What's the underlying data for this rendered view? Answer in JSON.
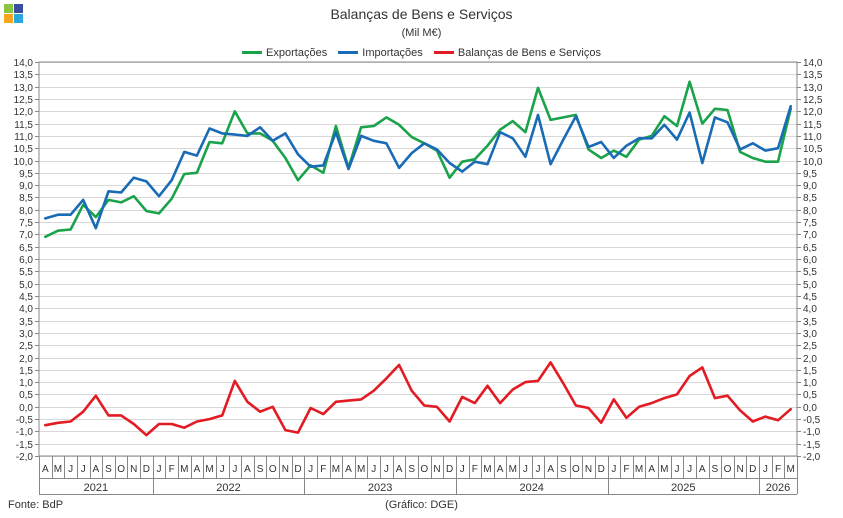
{
  "logo": {
    "colors": [
      "#8bc53f",
      "#3a4ea0",
      "#f7a61b",
      "#29a7df"
    ]
  },
  "title": "Balanças de Bens e Serviços",
  "subtitle": "(Mil M€)",
  "source": "Fonte: BdP",
  "credit": "(Gráfico: DGE)",
  "chart_data": {
    "type": "line",
    "ylim": [
      -2.0,
      14.0
    ],
    "y_tick_step": 0.5,
    "y_tick_labels": [
      "-2,0",
      "-1,5",
      "-1,0",
      "-0,5",
      "0,0",
      "0,5",
      "1,0",
      "1,5",
      "2,0",
      "2,5",
      "3,0",
      "3,5",
      "4,0",
      "4,5",
      "5,0",
      "5,5",
      "6,0",
      "6,5",
      "7,0",
      "7,5",
      "8,0",
      "8,5",
      "9,0",
      "9,5",
      "10,0",
      "10,5",
      "11,0",
      "11,5",
      "12,0",
      "12,5",
      "13,0",
      "13,5",
      "14,0"
    ],
    "grid": true,
    "legend_position": "top-center",
    "categories": [
      "A",
      "M",
      "J",
      "J",
      "A",
      "S",
      "O",
      "N",
      "D",
      "J",
      "F",
      "M",
      "A",
      "M",
      "J",
      "J",
      "A",
      "S",
      "O",
      "N",
      "D",
      "J",
      "F",
      "M",
      "A",
      "M",
      "J",
      "J",
      "A",
      "S",
      "O",
      "N",
      "D",
      "J",
      "F",
      "M",
      "A",
      "M",
      "J",
      "J",
      "A",
      "S",
      "O",
      "N",
      "D",
      "J",
      "F",
      "M",
      "A",
      "M",
      "J",
      "J",
      "A",
      "S",
      "O",
      "N",
      "D",
      "J",
      "F",
      "M"
    ],
    "year_labels": [
      {
        "label": "2021",
        "start": 0,
        "end": 8
      },
      {
        "label": "2022",
        "start": 9,
        "end": 20
      },
      {
        "label": "2023",
        "start": 21,
        "end": 32
      },
      {
        "label": "2024",
        "start": 33,
        "end": 44
      },
      {
        "label": "2025",
        "start": 45,
        "end": 56
      },
      {
        "label": "2026",
        "start": 57,
        "end": 59
      }
    ],
    "series": [
      {
        "name": "Exportações",
        "color": "#1aa34a",
        "values": [
          6.9,
          7.15,
          7.2,
          8.2,
          7.7,
          8.4,
          8.3,
          8.55,
          7.95,
          7.85,
          8.45,
          9.45,
          9.5,
          10.75,
          10.7,
          12.0,
          11.1,
          11.1,
          10.8,
          10.1,
          9.2,
          9.8,
          9.5,
          11.4,
          9.7,
          11.35,
          11.4,
          11.75,
          11.45,
          10.95,
          10.7,
          10.4,
          9.3,
          9.95,
          10.05,
          10.6,
          11.25,
          11.6,
          11.15,
          12.95,
          11.65,
          11.75,
          11.85,
          10.45,
          10.1,
          10.4,
          10.15,
          10.85,
          11.0,
          11.8,
          11.4,
          13.2,
          11.5,
          12.1,
          12.05,
          10.35,
          10.1,
          9.95,
          9.95,
          12.1
        ]
      },
      {
        "name": "Importações",
        "color": "#1a6bb5",
        "values": [
          7.65,
          7.8,
          7.8,
          8.4,
          7.25,
          8.75,
          8.7,
          9.3,
          9.15,
          8.55,
          9.2,
          10.35,
          10.2,
          11.3,
          11.1,
          11.05,
          11.0,
          11.35,
          10.8,
          11.1,
          10.25,
          9.75,
          9.8,
          11.15,
          9.65,
          11.0,
          10.8,
          10.7,
          9.7,
          10.3,
          10.7,
          10.45,
          9.9,
          9.55,
          9.95,
          9.85,
          11.15,
          10.9,
          10.15,
          11.85,
          9.85,
          10.85,
          11.8,
          10.55,
          10.75,
          10.1,
          10.6,
          10.9,
          10.9,
          11.45,
          10.85,
          11.95,
          9.9,
          11.75,
          11.55,
          10.45,
          10.7,
          10.4,
          10.5,
          12.2
        ]
      },
      {
        "name": "Balanças de Bens e Serviços",
        "color": "#e31b23",
        "values": [
          -0.75,
          -0.65,
          -0.6,
          -0.2,
          0.45,
          -0.35,
          -0.35,
          -0.7,
          -1.15,
          -0.7,
          -0.7,
          -0.85,
          -0.6,
          -0.5,
          -0.35,
          1.05,
          0.2,
          -0.2,
          0.0,
          -0.95,
          -1.05,
          -0.05,
          -0.3,
          0.2,
          0.25,
          0.3,
          0.65,
          1.15,
          1.7,
          0.65,
          0.05,
          0.0,
          -0.6,
          0.4,
          0.15,
          0.85,
          0.15,
          0.7,
          1.0,
          1.05,
          1.8,
          0.95,
          0.05,
          -0.05,
          -0.65,
          0.3,
          -0.45,
          0.0,
          0.15,
          0.35,
          0.5,
          1.25,
          1.6,
          0.35,
          0.45,
          -0.15,
          -0.6,
          -0.4,
          -0.55,
          -0.1
        ]
      }
    ]
  }
}
